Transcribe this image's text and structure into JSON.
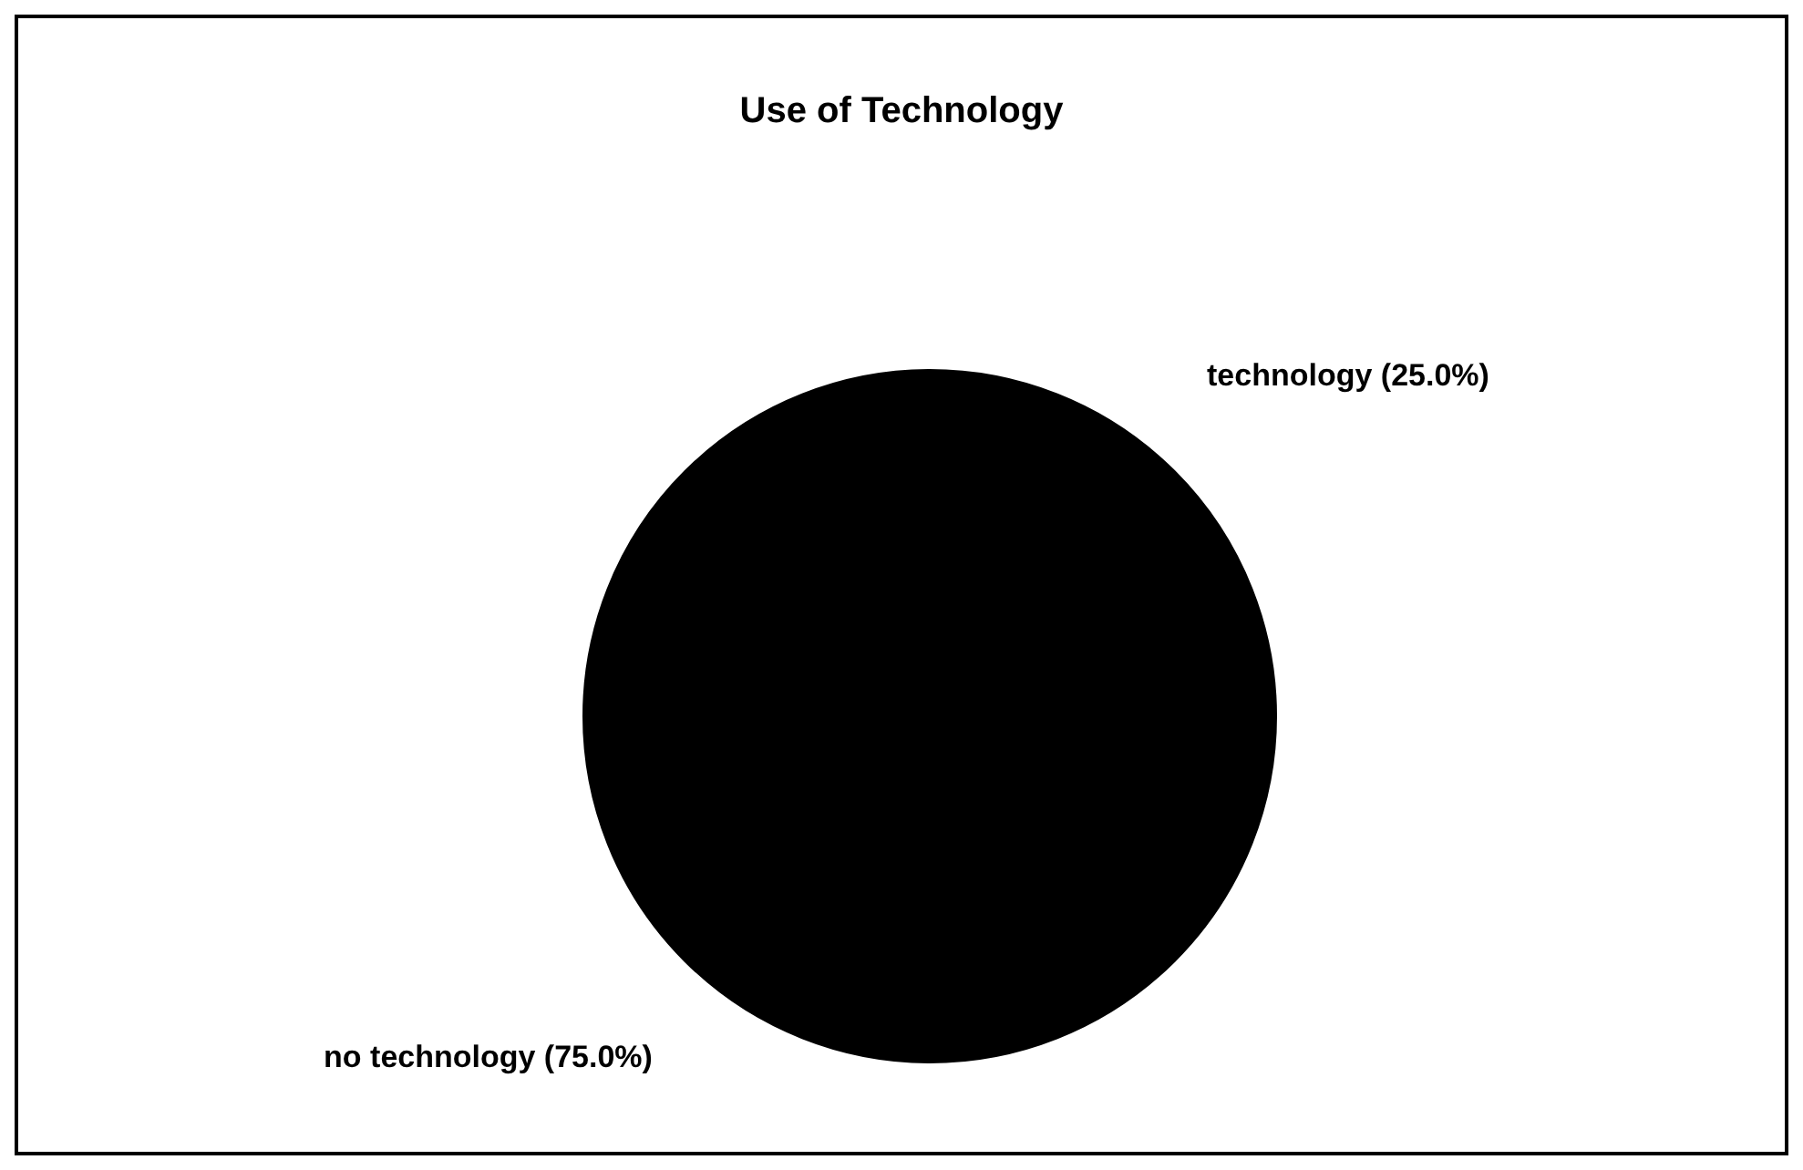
{
  "chart_data": {
    "type": "pie",
    "title": "Use of Technology",
    "categories": [
      "technology",
      "no technology"
    ],
    "values": [
      25,
      75
    ],
    "colors": [
      "#000000",
      "#000000"
    ],
    "value_labels": [
      "(25.0%)",
      "(75.0%)"
    ]
  }
}
